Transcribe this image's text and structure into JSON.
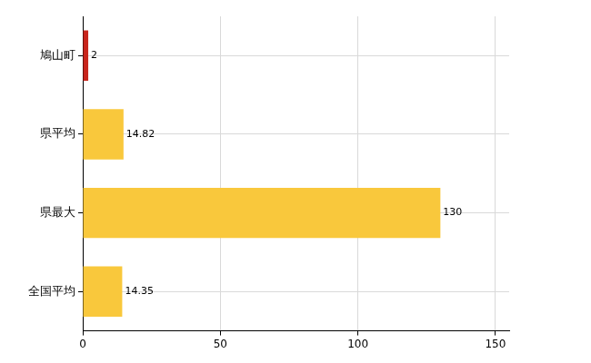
{
  "chart_data": {
    "type": "bar",
    "orientation": "horizontal",
    "categories": [
      "鳩山町",
      "県平均",
      "県最大",
      "全国平均"
    ],
    "values": [
      2,
      14.82,
      130,
      14.35
    ],
    "colors": [
      "#c8251c",
      "#f9c83c",
      "#f9c83c",
      "#f9c83c"
    ],
    "xlim": [
      0,
      155
    ],
    "xticks": [
      0,
      50,
      100,
      150
    ],
    "grid": true,
    "data_labels": true
  }
}
